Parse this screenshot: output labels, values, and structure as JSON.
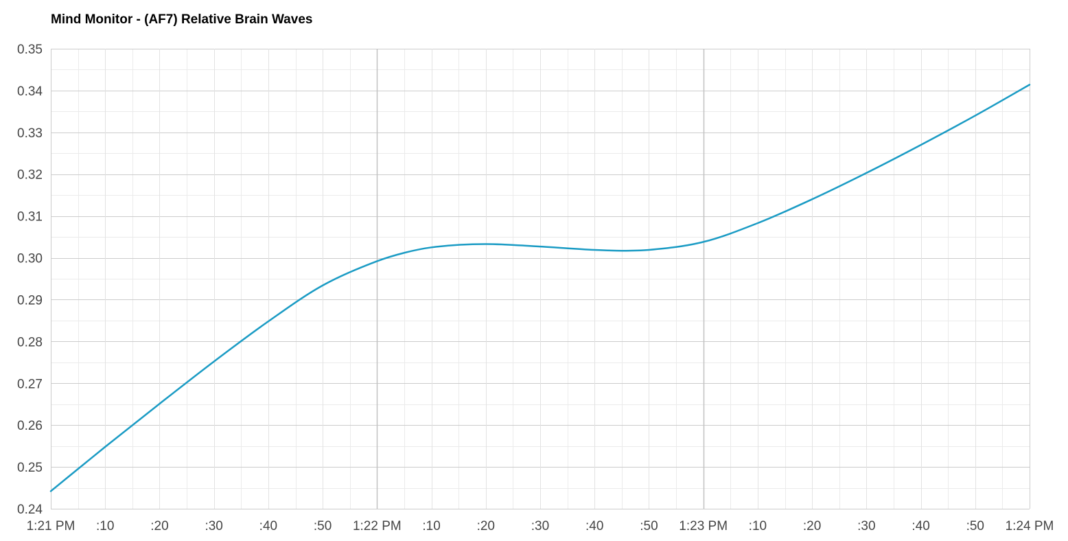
{
  "chart_data": {
    "type": "line",
    "title": "Mind Monitor - (AF7) Relative Brain Waves",
    "xlabel": "",
    "ylabel": "",
    "x_ticks": [
      "1:21 PM",
      ":10",
      ":20",
      ":30",
      ":40",
      ":50",
      "1:22 PM",
      ":10",
      ":20",
      ":30",
      ":40",
      ":50",
      "1:23 PM",
      ":10",
      ":20",
      ":30",
      ":40",
      ":50",
      "1:24 PM"
    ],
    "x_major_ticks": [
      "1:22 PM",
      "1:23 PM"
    ],
    "x_range": [
      "1:21:00 PM",
      "1:24:00 PM"
    ],
    "y_ticks": [
      "0.24",
      "0.25",
      "0.26",
      "0.27",
      "0.28",
      "0.29",
      "0.30",
      "0.31",
      "0.32",
      "0.33",
      "0.34",
      "0.35"
    ],
    "ylim": [
      0.24,
      0.35
    ],
    "grid": true,
    "legend": "none",
    "series": [
      {
        "color": "#1a9bc4",
        "x": [
          "1:21:00 PM",
          "1:21:10 PM",
          "1:21:20 PM",
          "1:21:30 PM",
          "1:21:40 PM",
          "1:21:50 PM",
          "1:22:00 PM",
          "1:22:05 PM",
          "1:22:10 PM",
          "1:22:20 PM",
          "1:22:30 PM",
          "1:22:40 PM",
          "1:22:45 PM",
          "1:22:50 PM",
          "1:23:00 PM",
          "1:23:10 PM",
          "1:23:20 PM",
          "1:23:30 PM",
          "1:23:40 PM",
          "1:23:50 PM",
          "1:24:00 PM"
        ],
        "values": [
          0.2442,
          0.2548,
          0.2651,
          0.2752,
          0.2848,
          0.2934,
          0.2992,
          0.3012,
          0.3025,
          0.3033,
          0.3027,
          0.3019,
          0.3017,
          0.3019,
          0.3038,
          0.3083,
          0.314,
          0.3203,
          0.327,
          0.334,
          0.3414
        ]
      }
    ]
  }
}
